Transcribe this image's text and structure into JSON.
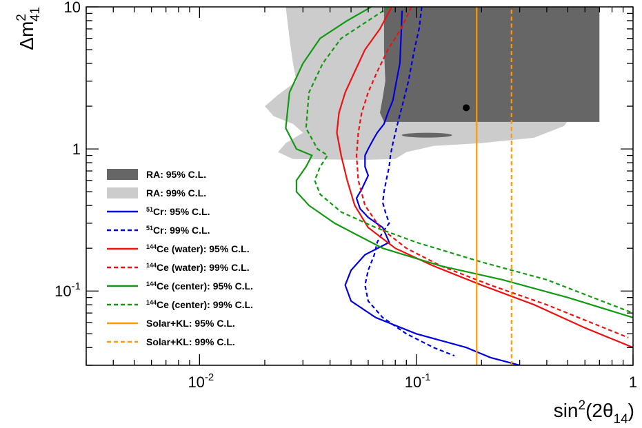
{
  "chart_data": {
    "type": "line",
    "title": "",
    "xlabel": {
      "prefix": "sin",
      "sup": "2",
      "mid": "(2θ",
      "sub": "14",
      "suffix": ")"
    },
    "ylabel": {
      "prefix": "Δm",
      "sup": "2",
      "sub": "41"
    },
    "x_scale": "log",
    "y_scale": "log",
    "xlim": [
      0.003,
      1
    ],
    "ylim": [
      0.03,
      10
    ],
    "x_ticks": [
      {
        "value": 0.01,
        "base": "10",
        "exp": "-2"
      },
      {
        "value": 0.1,
        "base": "10",
        "exp": "-1"
      },
      {
        "value": 1,
        "label": "1"
      }
    ],
    "y_ticks": [
      {
        "value": 0.1,
        "base": "10",
        "exp": "-1"
      },
      {
        "value": 1,
        "label": "1"
      },
      {
        "value": 10,
        "label": "10"
      }
    ],
    "grid": false,
    "legend_position": "left-center",
    "best_fit_point": {
      "x": 0.17,
      "y": 1.95
    },
    "regions": [
      {
        "name": "RA: 95% C.L.",
        "color": "#666666",
        "left": [
          [
            0.071,
            10
          ],
          [
            0.071,
            5
          ],
          [
            0.072,
            3
          ],
          [
            0.07,
            2.3
          ],
          [
            0.068,
            1.8
          ],
          [
            0.071,
            1.55
          ]
        ],
        "right": [
          [
            0.7,
            10
          ],
          [
            0.7,
            1.55
          ]
        ],
        "island": {
          "x": 0.112,
          "y": 1.25,
          "x_range": [
            0.085,
            0.145
          ]
        }
      },
      {
        "name": "RA: 99% C.L.",
        "color": "#cccccc",
        "left": [
          [
            0.025,
            10
          ],
          [
            0.026,
            6
          ],
          [
            0.027,
            4
          ],
          [
            0.028,
            3
          ],
          [
            0.023,
            2.4
          ],
          [
            0.02,
            2
          ],
          [
            0.022,
            1.7
          ],
          [
            0.027,
            1.5
          ],
          [
            0.03,
            1.3
          ],
          [
            0.025,
            1.1
          ],
          [
            0.023,
            0.95
          ],
          [
            0.027,
            0.85
          ],
          [
            0.05,
            0.84
          ],
          [
            0.06,
            0.84
          ]
        ],
        "right": [
          [
            0.5,
            10
          ],
          [
            0.48,
            6
          ],
          [
            0.52,
            4
          ],
          [
            0.6,
            3
          ],
          [
            0.56,
            2.3
          ],
          [
            0.6,
            1.9
          ],
          [
            0.52,
            1.7
          ],
          [
            0.48,
            1.45
          ],
          [
            0.35,
            1.2
          ],
          [
            0.2,
            1.1
          ],
          [
            0.12,
            1.05
          ],
          [
            0.09,
            0.95
          ],
          [
            0.08,
            0.85
          ],
          [
            0.06,
            0.84
          ]
        ]
      }
    ],
    "series": [
      {
        "name": "Cr: 95% C.L.",
        "sup": "51",
        "color": "#0000dd",
        "dash": false,
        "x": [
          0.086,
          0.085,
          0.084,
          0.081,
          0.078,
          0.074,
          0.071,
          0.066,
          0.063,
          0.06,
          0.058,
          0.058,
          0.06,
          0.056,
          0.053,
          0.055,
          0.06,
          0.07,
          0.075,
          0.058,
          0.05,
          0.047,
          0.05,
          0.065,
          0.1,
          0.17,
          0.22,
          0.3
        ],
        "y": [
          9.4,
          6,
          4,
          3,
          2.2,
          1.8,
          1.5,
          1.3,
          1.15,
          1,
          0.9,
          0.75,
          0.65,
          0.52,
          0.45,
          0.38,
          0.33,
          0.28,
          0.22,
          0.18,
          0.14,
          0.11,
          0.085,
          0.065,
          0.05,
          0.04,
          0.034,
          0.03
        ]
      },
      {
        "name": "Cr: 99% C.L.",
        "sup": "51",
        "color": "#0000dd",
        "dash": true,
        "x": [
          0.106,
          0.103,
          0.098,
          0.092,
          0.086,
          0.081,
          0.078,
          0.076,
          0.075,
          0.073,
          0.071,
          0.07,
          0.072,
          0.075,
          0.07,
          0.066,
          0.064,
          0.06,
          0.058,
          0.06,
          0.07,
          0.09,
          0.12,
          0.15
        ],
        "y": [
          10,
          7,
          5,
          3,
          2,
          1.4,
          1.1,
          0.9,
          0.75,
          0.62,
          0.5,
          0.42,
          0.36,
          0.3,
          0.26,
          0.22,
          0.18,
          0.14,
          0.11,
          0.085,
          0.065,
          0.05,
          0.04,
          0.035
        ]
      },
      {
        "name": "Ce (water): 95% C.L.",
        "sup": "144",
        "color": "#ee1111",
        "dash": false,
        "x": [
          0.077,
          0.068,
          0.058,
          0.052,
          0.047,
          0.044,
          0.043,
          0.045,
          0.048,
          0.052,
          0.06,
          0.08,
          0.12,
          0.2,
          0.35,
          0.6,
          1
        ],
        "y": [
          10,
          7,
          5,
          3.5,
          2.5,
          1.8,
          1.3,
          0.9,
          0.6,
          0.4,
          0.28,
          0.2,
          0.15,
          0.11,
          0.08,
          0.055,
          0.04
        ]
      },
      {
        "name": "Ce (water): 99% C.L.",
        "sup": "144",
        "color": "#ee1111",
        "dash": true,
        "x": [
          0.095,
          0.085,
          0.074,
          0.066,
          0.06,
          0.056,
          0.054,
          0.053,
          0.054,
          0.058,
          0.068,
          0.09,
          0.13,
          0.22,
          0.4,
          0.95
        ],
        "y": [
          10,
          7,
          5,
          3.5,
          2.5,
          1.8,
          1.3,
          0.9,
          0.6,
          0.4,
          0.28,
          0.2,
          0.15,
          0.11,
          0.08,
          0.047
        ]
      },
      {
        "name": "Ce (center): 95% C.L.",
        "sup": "144",
        "color": "#119911",
        "dash": false,
        "x": [
          0.062,
          0.048,
          0.036,
          0.03,
          0.026,
          0.025,
          0.028,
          0.033,
          0.031,
          0.028,
          0.028,
          0.032,
          0.042,
          0.07,
          0.13,
          0.25,
          0.5,
          1
        ],
        "y": [
          10,
          8,
          6,
          4,
          2.5,
          1.4,
          1,
          0.9,
          0.75,
          0.6,
          0.5,
          0.4,
          0.3,
          0.2,
          0.15,
          0.12,
          0.09,
          0.065
        ]
      },
      {
        "name": "Ce (center): 99% C.L.",
        "sup": "144",
        "color": "#119911",
        "dash": true,
        "x": [
          0.075,
          0.06,
          0.045,
          0.037,
          0.032,
          0.031,
          0.035,
          0.039,
          0.036,
          0.034,
          0.036,
          0.045,
          0.065,
          0.1,
          0.2,
          0.4,
          1
        ],
        "y": [
          10,
          8,
          6,
          4,
          2.5,
          1.4,
          1,
          0.9,
          0.75,
          0.6,
          0.48,
          0.36,
          0.28,
          0.22,
          0.16,
          0.12,
          0.07
        ]
      },
      {
        "name": "Solar+KL: 95% C.L.",
        "color": "#ff9900",
        "dash": false,
        "x": [
          0.19,
          0.19
        ],
        "y": [
          0.03,
          10
        ]
      },
      {
        "name": "Solar+KL: 99% C.L.",
        "color": "#ff9900",
        "dash": true,
        "x": [
          0.275,
          0.275
        ],
        "y": [
          0.03,
          10
        ]
      }
    ]
  }
}
